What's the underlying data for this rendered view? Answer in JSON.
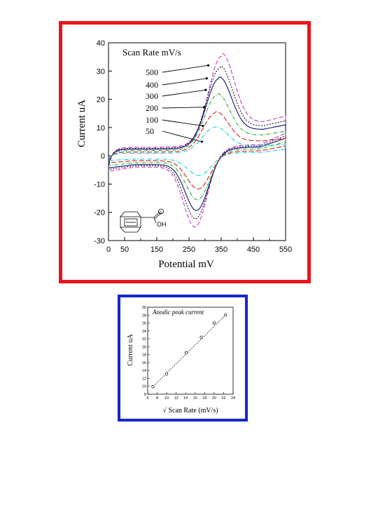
{
  "chart_data": [
    {
      "type": "line",
      "title": "",
      "xlabel": "Potential mV",
      "ylabel": "Current uA",
      "xlim": [
        0,
        550
      ],
      "ylim": [
        -30,
        40
      ],
      "x_ticks": [
        0,
        50,
        150,
        250,
        350,
        450,
        550
      ],
      "x_minor_ticks": [
        100,
        200,
        300,
        400,
        500
      ],
      "y_ticks": [
        -30,
        -20,
        -10,
        0,
        10,
        20,
        30,
        40
      ],
      "grid": false,
      "annotation_title": "Scan Rate mV/s",
      "molecule_label": "OH",
      "series": [
        {
          "name": "500",
          "color": "#d62fd0",
          "dash": "6,3",
          "ipa": 34,
          "ipc": -26.5,
          "epa": 350,
          "epc": 270
        },
        {
          "name": "400",
          "color": "#1a1a1a",
          "dash": "2,2",
          "ipa": 30,
          "ipc": -23.5,
          "epa": 345,
          "epc": 272
        },
        {
          "name": "300",
          "color": "#0d0d7a",
          "dash": "",
          "ipa": 26.5,
          "ipc": -20.5,
          "epa": 342,
          "epc": 275
        },
        {
          "name": "200",
          "color": "#1fa82c",
          "dash": "5,2,1,2",
          "ipa": 21,
          "ipc": -16.5,
          "epa": 337,
          "epc": 278
        },
        {
          "name": "100",
          "color": "#d42020",
          "dash": "7,3",
          "ipa": 15,
          "ipc": -12.5,
          "epa": 333,
          "epc": 280
        },
        {
          "name": "50",
          "color": "#22c8d4",
          "dash": "6,2,1,2",
          "ipa": 10,
          "ipc": -7.5,
          "epa": 330,
          "epc": 283
        }
      ]
    },
    {
      "type": "scatter",
      "title": "Anodic peak current",
      "xlabel": "√ Scan Rate (mV/s)",
      "ylabel": "Current uA",
      "xlim": [
        6,
        24
      ],
      "ylim": [
        8,
        30
      ],
      "x_ticks": [
        6,
        8,
        10,
        12,
        14,
        16,
        18,
        20,
        22,
        24
      ],
      "y_ticks": [
        8,
        10,
        12,
        14,
        16,
        18,
        20,
        22,
        24,
        26,
        28,
        30
      ],
      "grid": false,
      "points": [
        {
          "x": 7.1,
          "y": 9.9
        },
        {
          "x": 10,
          "y": 13.1
        },
        {
          "x": 14.1,
          "y": 18.5
        },
        {
          "x": 17.3,
          "y": 22.4
        },
        {
          "x": 20,
          "y": 26
        },
        {
          "x": 22.4,
          "y": 28
        }
      ],
      "fit_line": {
        "x": [
          7.1,
          22.4
        ],
        "y": [
          9.9,
          28
        ]
      }
    }
  ]
}
